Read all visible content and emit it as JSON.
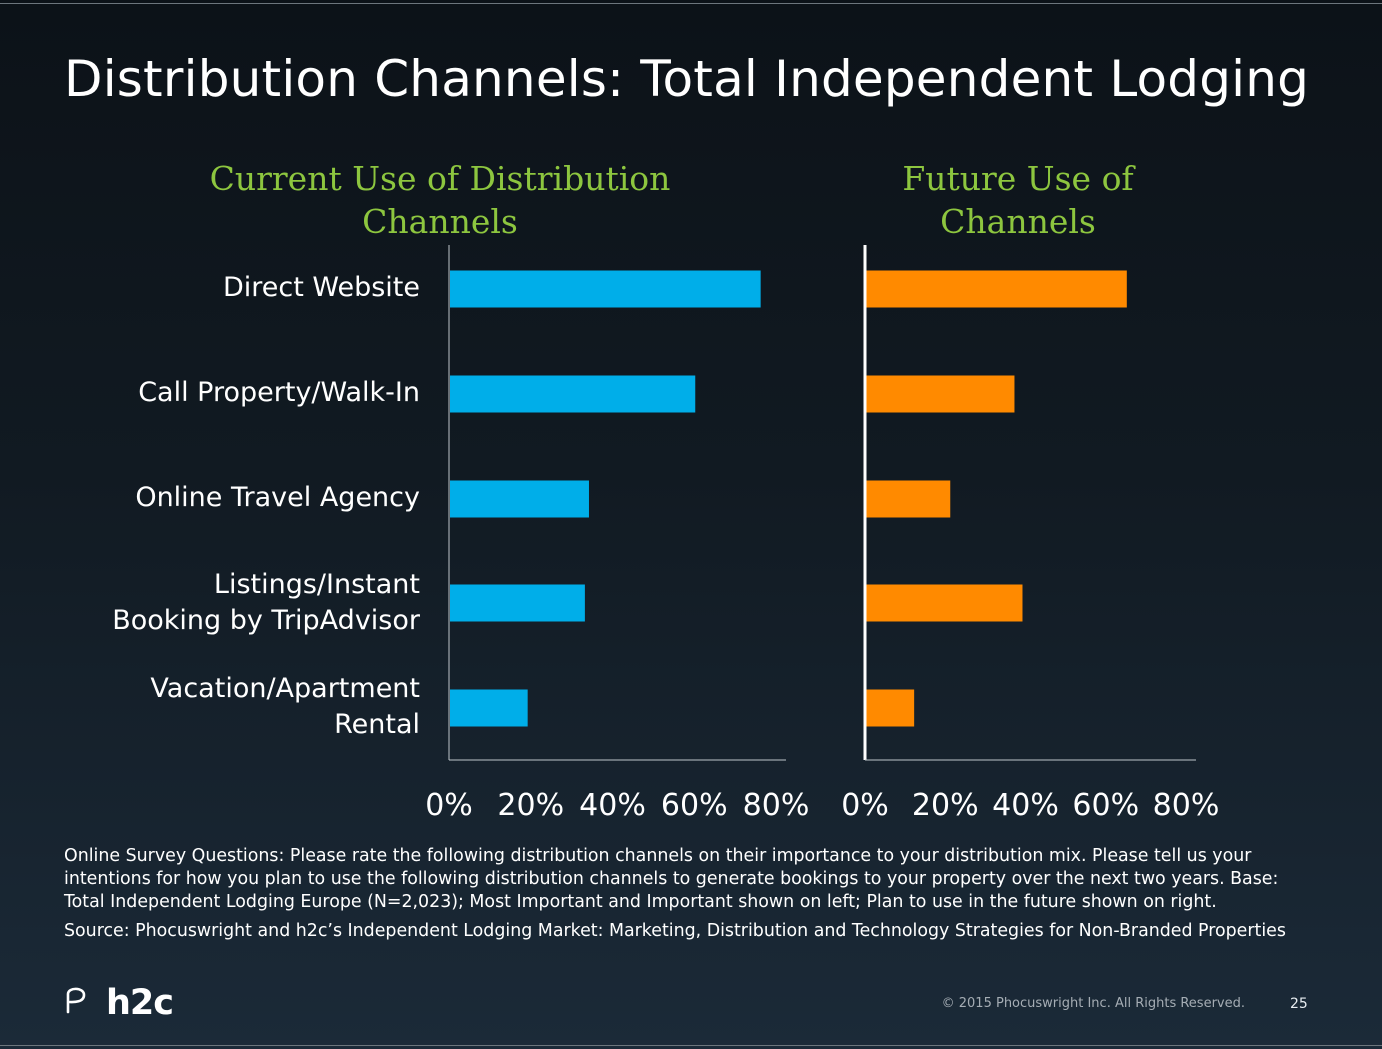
{
  "slide": {
    "title": "Distribution Channels: Total Independent Lodging",
    "note": "Online Survey Questions: Please rate the following distribution channels on their importance to your distribution mix. Please tell us your intentions for how you plan to use the following distribution channels to generate bookings to your property over the next two years. Base: Total Independent Lodging Europe (N=2,023); Most Important and Important shown on left; Plan to use in the future shown on right.",
    "source": "Source: Phocuswright and h2c’s Independent Lodging Market: Marketing, Distribution and Technology Strategies for Non-Branded Properties",
    "copyright": "© 2015 Phocuswright Inc. All Rights Reserved.",
    "page_number": "25",
    "logo_text": "h2c"
  },
  "chart_data": [
    {
      "type": "bar",
      "orientation": "horizontal",
      "title": "Current Use of Distribution Channels",
      "title_lines": [
        "Current Use of Distribution",
        "Channels"
      ],
      "categories": [
        "Direct Website",
        "Call Property/Walk-In",
        "Online Travel Agency",
        "Listings/Instant Booking by TripAdvisor",
        "Vacation/Apartment Rental"
      ],
      "category_lines": [
        [
          "Direct Website"
        ],
        [
          "Call Property/Walk-In"
        ],
        [
          "Online Travel Agency"
        ],
        [
          "Listings/Instant",
          "Booking by TripAdvisor"
        ],
        [
          "Vacation/Apartment",
          "Rental"
        ]
      ],
      "values": [
        76,
        60,
        34,
        33,
        19
      ],
      "xlim": [
        0,
        80
      ],
      "ticks": [
        "0%",
        "20%",
        "40%",
        "60%",
        "80%"
      ],
      "color": "#00aee9",
      "grid": false
    },
    {
      "type": "bar",
      "orientation": "horizontal",
      "title": "Future Use of Channels",
      "title_lines": [
        "Future Use of",
        "Channels"
      ],
      "categories": [
        "Direct Website",
        "Call Property/Walk-In",
        "Online Travel Agency",
        "Listings/Instant Booking by TripAdvisor",
        "Vacation/Apartment Rental"
      ],
      "values": [
        65,
        37,
        21,
        39,
        12
      ],
      "xlim": [
        0,
        80
      ],
      "ticks": [
        "0%",
        "20%",
        "40%",
        "60%",
        "80%"
      ],
      "color": "#ff8a00",
      "grid": false
    }
  ]
}
